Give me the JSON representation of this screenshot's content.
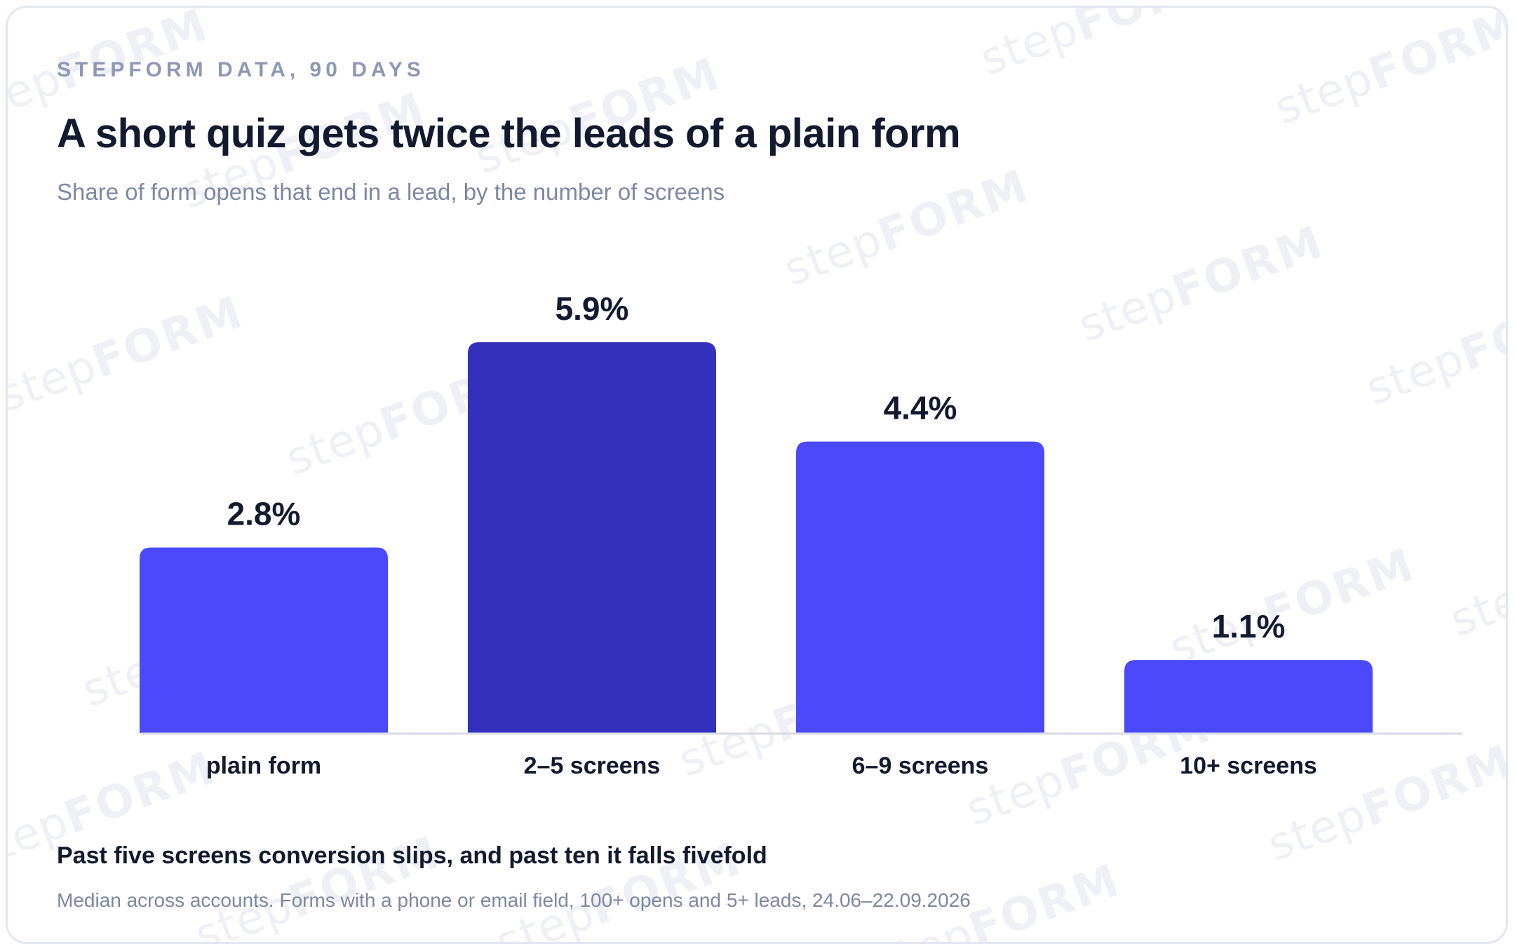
{
  "eyebrow": "STEPFORM DATA, 90 DAYS",
  "title": "A short quiz gets twice the leads of a plain form",
  "subtitle": "Share of form opens that end in a lead, by the number of screens",
  "watermark": {
    "prefix": "step",
    "suffix": "FORM"
  },
  "chart_data": {
    "type": "bar",
    "categories": [
      "plain form",
      "2–5 screens",
      "6–9 screens",
      "10+ screens"
    ],
    "values": [
      2.8,
      5.9,
      4.4,
      1.1
    ],
    "value_labels": [
      "2.8%",
      "5.9%",
      "4.4%",
      "1.1%"
    ],
    "highlight_index": 1,
    "ylim": [
      0,
      5.9
    ],
    "grid": false,
    "legend": "none",
    "colors": {
      "bar": "#4b49fb",
      "highlight": "#3330bd",
      "axis": "#d7dbe6",
      "label": "#121a2f"
    }
  },
  "footnote_head": "Past five screens conversion slips, and past ten it falls fivefold",
  "footnote": "Median across accounts. Forms with a phone or email field, 100+ opens and 5+ leads, 24.06–22.09.2026"
}
